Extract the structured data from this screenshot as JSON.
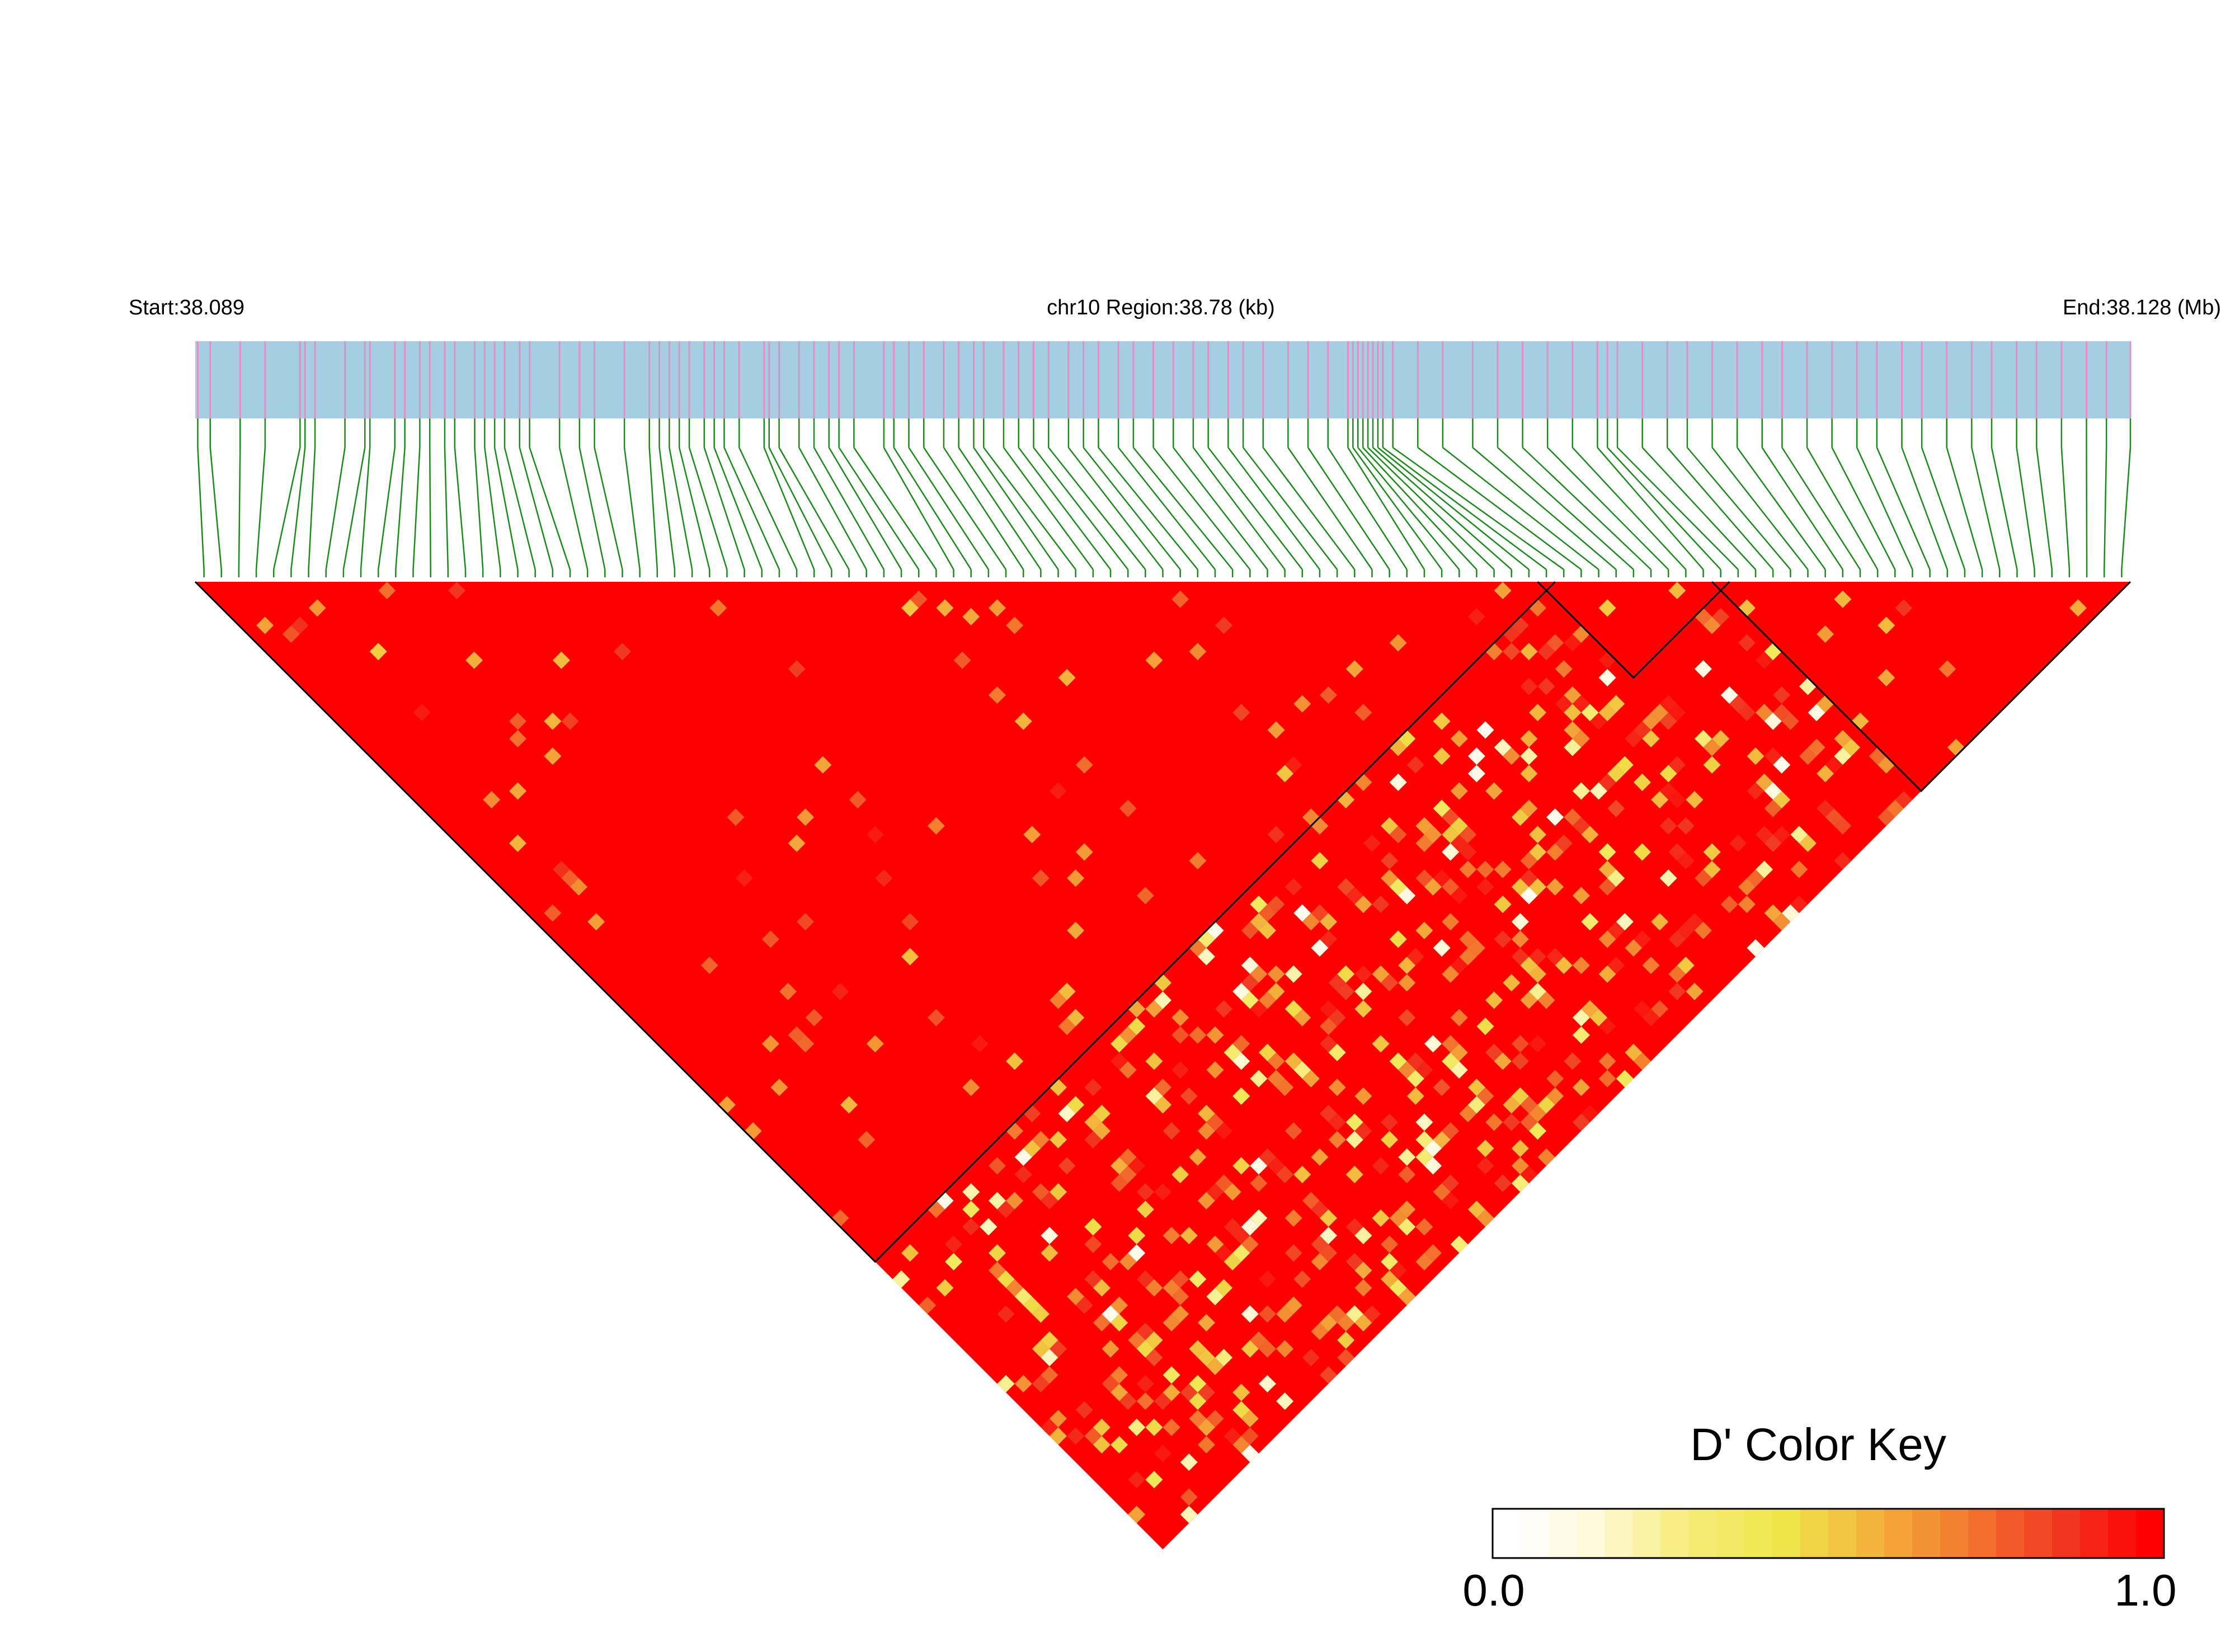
{
  "header": {
    "start_label": "Start:38.089",
    "region_label": "chr10 Region:38.78 (kb)",
    "end_label": "End:38.128 (Mb)"
  },
  "colors": {
    "region_bar": "#a6cee3",
    "snp_tick": "#e48fc2",
    "connector": "#1a8a1a",
    "block_outline": "#000000"
  },
  "legend": {
    "title": "D' Color Key",
    "min_label": "0.0",
    "max_label": "1.0",
    "stops": [
      "#ffffff",
      "#fff9d6",
      "#f6ec78",
      "#eee64a",
      "#f3b23c",
      "#f37a2e",
      "#f03a22",
      "#ff0000"
    ]
  },
  "chart_data": {
    "type": "heatmap",
    "title": "",
    "chromosome": "chr10",
    "start_mb": 38.089,
    "end_mb": 38.128,
    "region_kb": 38.78,
    "value_name": "D'",
    "value_range": [
      0.0,
      1.0
    ],
    "snp_positions_kb": [
      0.05,
      0.3,
      0.9,
      1.4,
      2.1,
      2.2,
      2.4,
      3.0,
      3.4,
      3.5,
      4.0,
      4.2,
      4.5,
      4.7,
      5.0,
      5.2,
      5.6,
      5.8,
      6.0,
      6.2,
      6.5,
      6.7,
      7.3,
      7.7,
      8.0,
      8.6,
      9.1,
      9.3,
      9.5,
      9.7,
      9.9,
      10.2,
      10.4,
      10.6,
      10.9,
      11.4,
      11.5,
      11.7,
      12.1,
      12.4,
      12.7,
      12.9,
      13.2,
      13.8,
      14.0,
      14.3,
      14.6,
      15.0,
      15.3,
      15.6,
      15.8,
      16.2,
      16.5,
      16.8,
      17.1,
      17.5,
      17.8,
      18.1,
      18.5,
      18.8,
      19.2,
      19.6,
      20.0,
      20.3,
      20.7,
      21.0,
      21.4,
      21.9,
      22.3,
      22.7,
      23.1,
      23.2,
      23.3,
      23.4,
      23.5,
      23.6,
      23.7,
      23.8,
      24.0,
      24.5,
      25.0,
      25.6,
      26.1,
      26.6,
      27.1,
      27.6,
      28.1,
      28.3,
      28.5,
      29.0,
      29.5,
      29.9,
      30.4,
      30.9,
      31.4,
      31.8,
      32.3,
      32.8,
      33.3,
      33.7,
      34.2,
      34.6,
      35.1,
      35.6,
      36.0,
      36.5,
      36.9,
      37.4,
      37.9,
      38.3,
      38.78
    ],
    "blocks": [
      {
        "first_snp": 1,
        "last_snp": 78
      },
      {
        "first_snp": 78,
        "last_snp": 88
      },
      {
        "first_snp": 88,
        "last_snp": 111
      }
    ],
    "ld_summary": "D' predominantly 1.0 (red) across the region, with scattered lower values (yellow/white) concentrated in diagonal bands between blocks"
  }
}
